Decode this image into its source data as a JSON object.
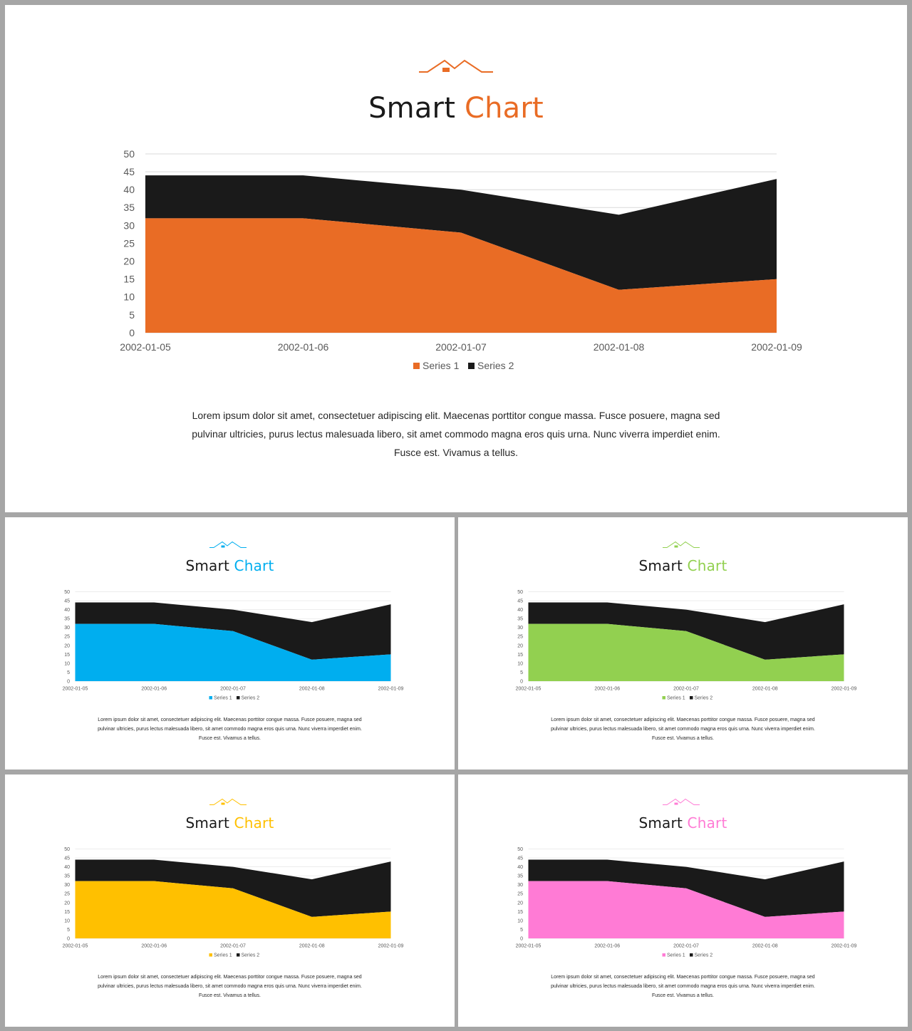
{
  "chart_data": {
    "type": "area",
    "stacked": true,
    "categories": [
      "2002-01-05",
      "2002-01-06",
      "2002-01-07",
      "2002-01-08",
      "2002-01-09"
    ],
    "series": [
      {
        "name": "Series 1",
        "values": [
          32,
          32,
          28,
          12,
          15
        ]
      },
      {
        "name": "Series 2",
        "values": [
          12,
          12,
          12,
          21,
          28
        ]
      }
    ],
    "ylim": [
      0,
      50
    ],
    "yticks": [
      "0",
      "5",
      "10",
      "15",
      "20",
      "25",
      "30",
      "35",
      "40",
      "45",
      "50"
    ],
    "grid": true,
    "legend_position": "bottom",
    "series2_color": "#1a1a1a"
  },
  "slides": [
    {
      "title_word1": "Smart",
      "title_word2": "Chart",
      "accent": "#e96c25",
      "body_lines": [
        "Lorem ipsum dolor sit amet, consectetuer adipiscing elit. Maecenas porttitor congue massa. Fusce posuere, magna sed",
        "pulvinar ultricies, purus lectus malesuada libero, sit amet commodo magna eros quis urna. Nunc viverra imperdiet enim.",
        "Fusce est. Vivamus a tellus."
      ]
    },
    {
      "title_word1": "Smart",
      "title_word2": "Chart",
      "accent": "#00aeef",
      "body_lines": [
        "Lorem ipsum dolor sit amet, consectetuer adipiscing elit. Maecenas porttitor congue massa. Fusce posuere, magna sed",
        "pulvinar ultricies, purus lectus malesuada libero, sit amet commodo magna eros quis urna. Nunc viverra imperdiet enim.",
        "Fusce est. Vivamus a tellus."
      ]
    },
    {
      "title_word1": "Smart",
      "title_word2": "Chart",
      "accent": "#92d050",
      "body_lines": [
        "Lorem ipsum dolor sit amet, consectetuer adipiscing elit. Maecenas porttitor congue massa. Fusce posuere, magna sed",
        "pulvinar ultricies, purus lectus malesuada libero, sit amet commodo magna eros quis urna. Nunc viverra imperdiet enim.",
        "Fusce est. Vivamus a tellus."
      ]
    },
    {
      "title_word1": "Smart",
      "title_word2": "Chart",
      "accent": "#ffc000",
      "body_lines": [
        "Lorem ipsum dolor sit amet, consectetuer adipiscing elit. Maecenas porttitor congue massa. Fusce posuere, magna sed",
        "pulvinar ultricies, purus lectus malesuada libero, sit amet commodo magna eros quis urna. Nunc viverra imperdiet enim.",
        "Fusce est. Vivamus a tellus."
      ]
    },
    {
      "title_word1": "Smart",
      "title_word2": "Chart",
      "accent": "#ff7bd5",
      "body_lines": [
        "Lorem ipsum dolor sit amet, consectetuer adipiscing elit. Maecenas porttitor congue massa. Fusce posuere, magna sed",
        "pulvinar ultricies, purus lectus malesuada libero, sit amet commodo magna eros quis urna. Nunc viverra imperdiet enim.",
        "Fusce est. Vivamus a tellus."
      ]
    }
  ]
}
